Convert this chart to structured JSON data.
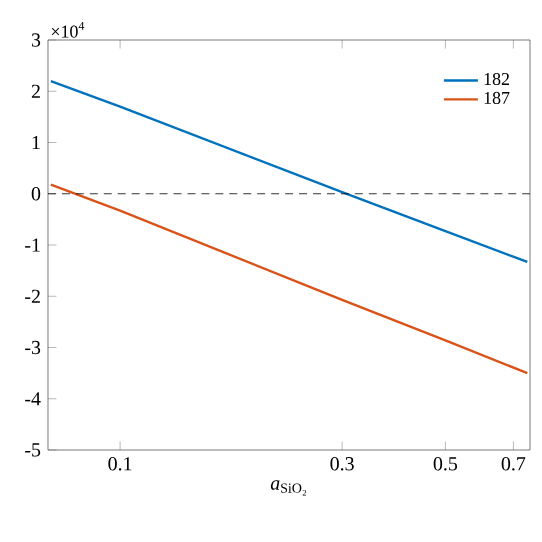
{
  "chart_data": {
    "type": "line",
    "xlabel": "*a*$_{SiO₂}$",
    "annotations": [
      "×10$^{4}$"
    ],
    "log": "x",
    "legend": "top right",
    "grid": false,
    "xlim": [
      0.07,
      0.76
    ],
    "xticks": [
      0.1,
      0.3,
      0.5,
      0.7
    ],
    "ylim": [
      -5,
      3
    ],
    "yticks": [
      -5,
      -4,
      -3,
      -2,
      -1,
      0,
      1,
      2,
      3
    ],
    "ref_lines": [
      {
        "axis": "y",
        "value": 0,
        "color": "#000000",
        "line_style": "dashed"
      }
    ],
    "series": [
      {
        "name": "182",
        "color": "#0072bd",
        "x": [
          0.071,
          0.1,
          0.3,
          0.5,
          0.75
        ],
        "values": [
          2.2,
          1.7,
          0.03,
          -0.73,
          -1.33
        ]
      },
      {
        "name": "187",
        "color": "#d95319",
        "x": [
          0.071,
          0.1,
          0.3,
          0.5,
          0.75
        ],
        "values": [
          0.18,
          -0.33,
          -2.07,
          -2.86,
          -3.5
        ]
      }
    ]
  }
}
